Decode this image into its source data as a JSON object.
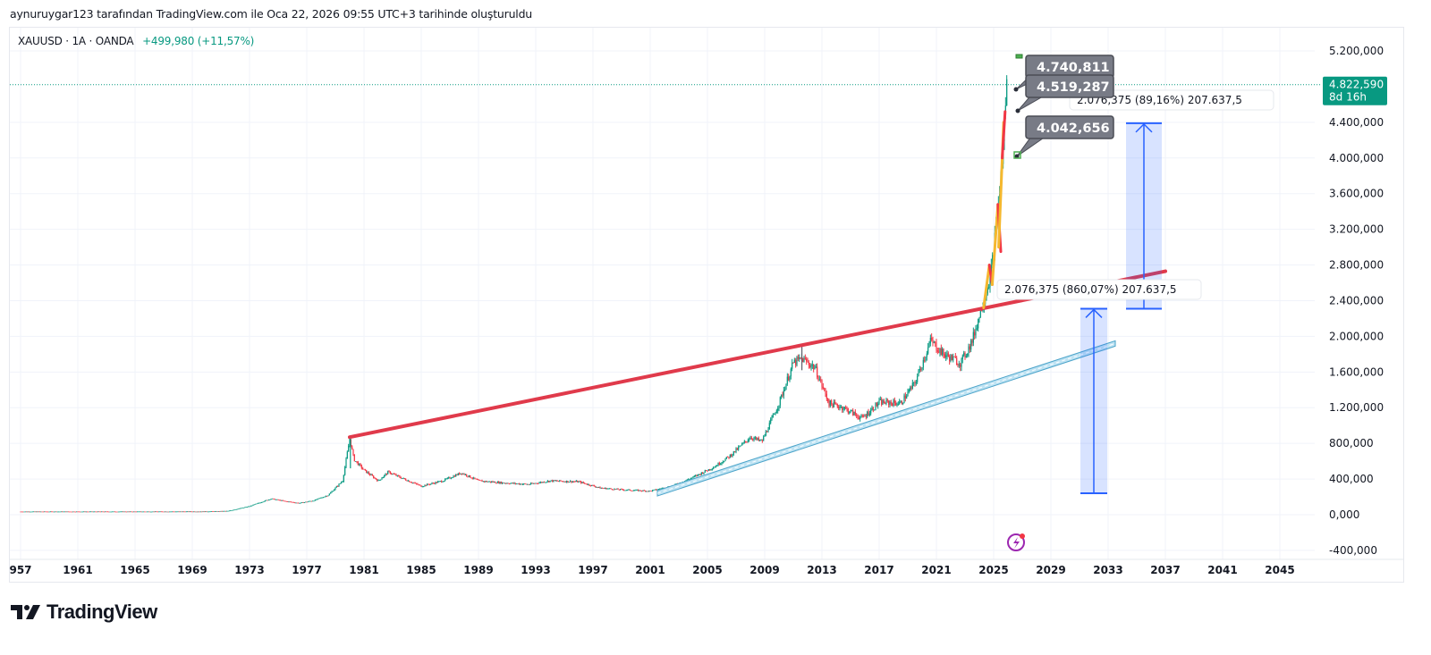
{
  "caption": "aynuruygar123 tarafından TradingView.com ile Oca 22, 2026 09:55 UTC+3 tarihinde oluşturuldu",
  "legend": {
    "symbol": "XAUUSD · 1A · OANDA",
    "change": "+499,980 (+11,57%)"
  },
  "price_badge": {
    "price": "4.822,590",
    "countdown": "8d 16h",
    "color": "#089981"
  },
  "callouts": [
    {
      "text": "4.740,811"
    },
    {
      "text": "4.519,287"
    },
    {
      "text": "4.042,656"
    }
  ],
  "measures": [
    {
      "text": "2.076,375 (860,07%) 207.637,5"
    },
    {
      "text": "2.076,375 (89,16%) 207.637,5"
    }
  ],
  "brand": {
    "name": "TradingView"
  },
  "icons": {
    "logo": "tradingview-logo-icon",
    "lightning": "lightning-alert-icon"
  },
  "colors": {
    "up": "#089981",
    "down": "#f23645",
    "resistance": "#e03a4b",
    "support": "#5bb3d9",
    "measure": "#2962ff",
    "fib": "#f5b82e",
    "callout": "#787b86"
  },
  "chart_data": {
    "type": "candlestick",
    "title": "XAUUSD · 1A · OANDA",
    "xlabel": "",
    "ylabel": "",
    "x_ticks": [
      "957",
      "1961",
      "1965",
      "1969",
      "1973",
      "1977",
      "1981",
      "1985",
      "1989",
      "1993",
      "1997",
      "2001",
      "2005",
      "2009",
      "2013",
      "2017",
      "2021",
      "2025",
      "2029",
      "2033",
      "2037",
      "2041",
      "2045"
    ],
    "y_ticks": [
      "5.200,000",
      "4.400,000",
      "4.000,000",
      "3.600,000",
      "3.200,000",
      "2.800,000",
      "2.400,000",
      "2.000,000",
      "1.600,000",
      "1.200,000",
      "800,000",
      "400,000",
      "0,000",
      "-400,000"
    ],
    "ylim": [
      -400,
      5200
    ],
    "xlim": [
      1956,
      2048
    ],
    "grid": true,
    "price_series": {
      "name": "XAUUSD",
      "x": [
        1957,
        1965,
        1970,
        1971.5,
        1973,
        1974.5,
        1975.5,
        1976.5,
        1977.5,
        1978.5,
        1979.5,
        1980.0,
        1980.3,
        1981,
        1982,
        1982.7,
        1983.5,
        1985,
        1986.5,
        1987.8,
        1989,
        1990.5,
        1992.5,
        1994,
        1996,
        1997.5,
        1999,
        2001,
        2002.5,
        2004,
        2005.5,
        2006.5,
        2008,
        2008.8,
        2010,
        2011.0,
        2011.6,
        2012.5,
        2013.5,
        2014.5,
        2015.8,
        2017,
        2018.5,
        2019.5,
        2020.6,
        2021.5,
        2022.7,
        2023.5,
        2024.2,
        2024.8,
        2025.3,
        2025.6,
        2025.9
      ],
      "y": [
        35,
        35,
        36,
        42,
        95,
        180,
        150,
        130,
        160,
        220,
        380,
        850,
        620,
        500,
        380,
        480,
        420,
        320,
        380,
        470,
        380,
        360,
        340,
        380,
        370,
        300,
        280,
        265,
        320,
        420,
        540,
        650,
        870,
        820,
        1250,
        1700,
        1750,
        1650,
        1250,
        1200,
        1080,
        1260,
        1250,
        1480,
        1950,
        1800,
        1700,
        1950,
        2350,
        2700,
        3400,
        4000,
        4822.59
      ]
    },
    "resistance_line": {
      "x": [
        1980.0,
        2037.0
      ],
      "y": [
        870,
        2730
      ]
    },
    "support_line": {
      "x": [
        2001.5,
        2033.5
      ],
      "y": [
        240,
        1920
      ]
    },
    "price_ranges": [
      {
        "x": 2032,
        "from": 240,
        "to": 2310,
        "label": "2.076,375 (860,07%) 207.637,5"
      },
      {
        "x": 2035.5,
        "from": 2310,
        "to": 4390,
        "label": "2.076,375 (89,16%) 207.637,5"
      }
    ],
    "callout_points": [
      {
        "x": 2025.8,
        "y": 4740.811,
        "label": "4.740,811"
      },
      {
        "x": 2025.7,
        "y": 4519.287,
        "label": "4.519,287"
      },
      {
        "x": 2025.7,
        "y": 4042.656,
        "label": "4.042,656"
      }
    ],
    "last_price": 4822.59
  }
}
